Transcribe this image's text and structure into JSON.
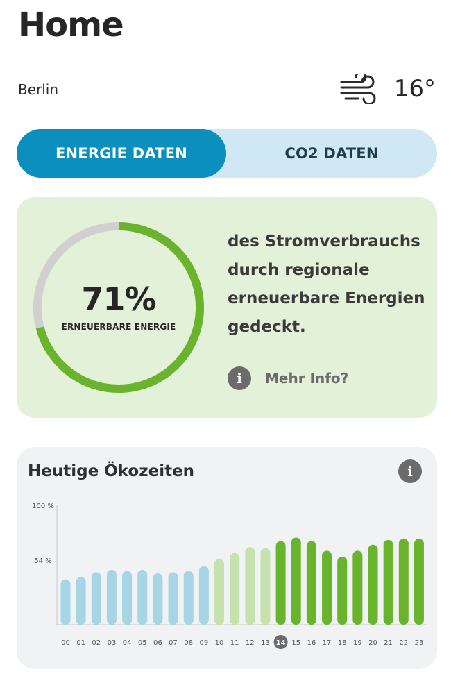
{
  "header": {
    "title": "Home"
  },
  "location": {
    "city": "Berlin"
  },
  "weather": {
    "icon": "wind-icon",
    "temperature": "16°"
  },
  "tabs": [
    {
      "label": "ENERGIE DATEN",
      "active": true
    },
    {
      "label": "CO2 DATEN",
      "active": false
    }
  ],
  "energy_card": {
    "percent_text": "71%",
    "percent_value": 0.71,
    "ring_label": "ERNEUERBARE ENERGIE",
    "description_lines": [
      "des Stromverbrauchs",
      "durch regionale",
      "erneuerbare Energien",
      "gedeckt."
    ],
    "more_info": "Mehr Info?",
    "colors": {
      "fill": "#6ab42d",
      "track": "#d0d0d0",
      "background": "#e3f1d8"
    }
  },
  "eco_card": {
    "title": "Heutige Ökozeiten"
  },
  "chart_data": {
    "type": "bar",
    "categories": [
      "00",
      "01",
      "02",
      "03",
      "04",
      "05",
      "06",
      "07",
      "08",
      "09",
      "10",
      "11",
      "12",
      "13",
      "14",
      "15",
      "16",
      "17",
      "18",
      "19",
      "20",
      "21",
      "22",
      "23"
    ],
    "values": [
      38,
      40,
      44,
      46,
      45,
      46,
      43,
      44,
      45,
      49,
      55,
      60,
      65,
      64,
      70,
      73,
      70,
      62,
      57,
      62,
      67,
      71,
      72,
      72
    ],
    "bar_colors": [
      "#a6d5e5",
      "#a6d5e5",
      "#a6d5e5",
      "#a6d5e5",
      "#a6d5e5",
      "#a6d5e5",
      "#a6d5e5",
      "#a6d5e5",
      "#a6d5e5",
      "#a6d5e5",
      "#c5e2ad",
      "#c5e2ad",
      "#c5e2ad",
      "#c5e2ad",
      "#6ab42d",
      "#6ab42d",
      "#6ab42d",
      "#6ab42d",
      "#6ab42d",
      "#6ab42d",
      "#6ab42d",
      "#6ab42d",
      "#6ab42d",
      "#6ab42d"
    ],
    "highlighted_hour": "14",
    "y_ticks": [
      {
        "value": 100,
        "label": "100 %"
      },
      {
        "value": 54,
        "label": "54 %"
      }
    ],
    "ylim": [
      0,
      100
    ]
  }
}
